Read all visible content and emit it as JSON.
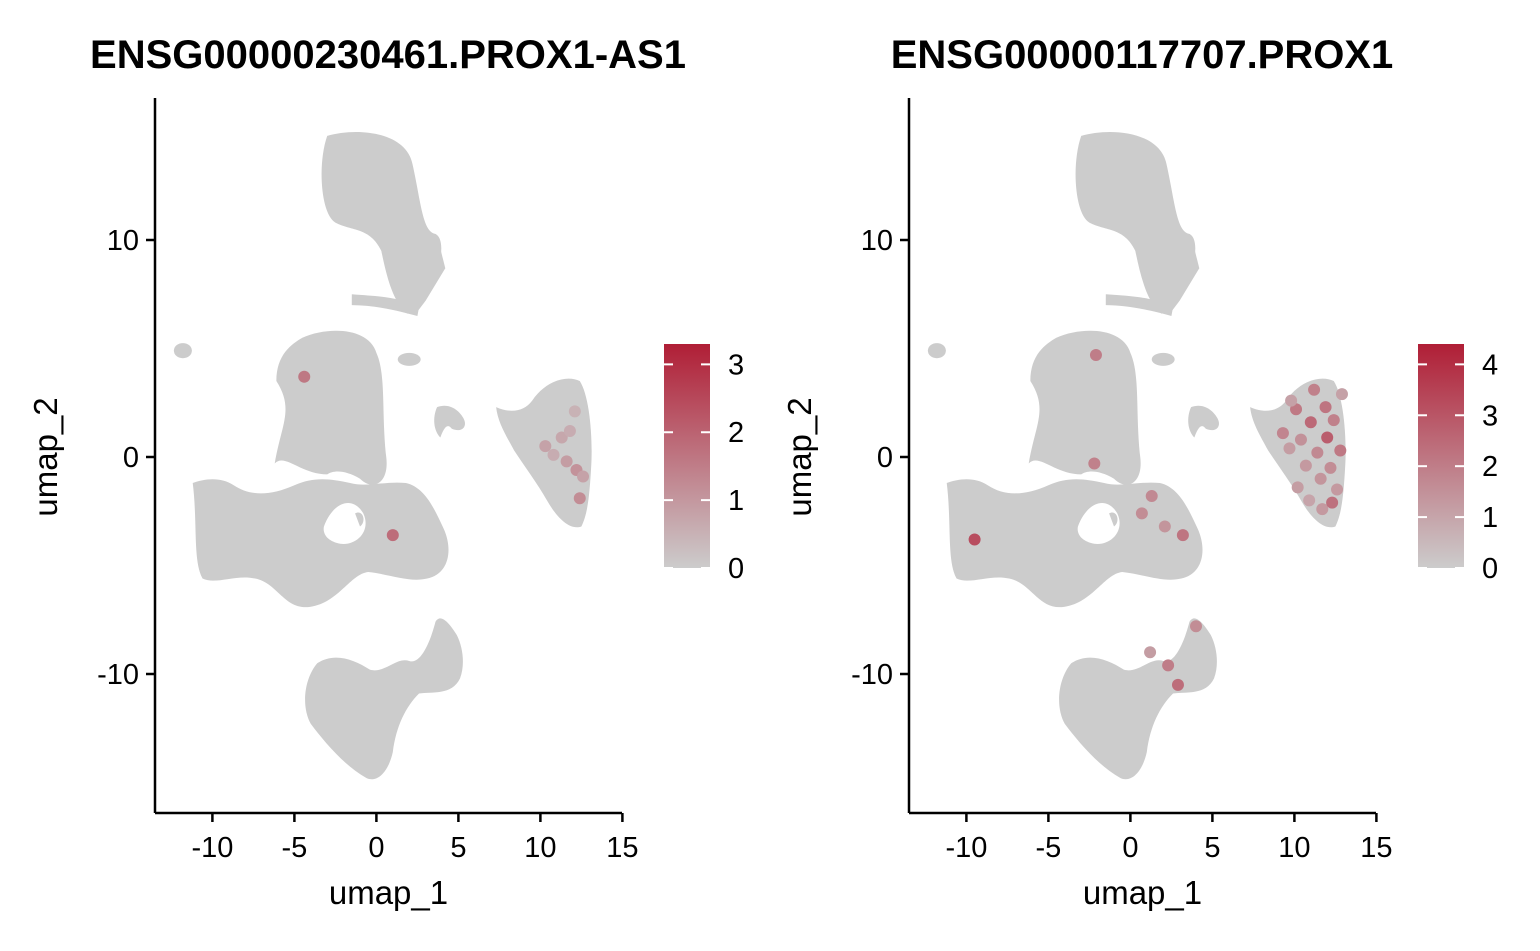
{
  "chart_data": [
    {
      "type": "scatter",
      "title": "ENSG00000230461.PROX1-AS1",
      "xlabel": "umap_1",
      "ylabel": "umap_2",
      "xlim": [
        -13.5,
        15.5
      ],
      "ylim": [
        -16.5,
        16.5
      ],
      "xticks": [
        -10,
        -5,
        0,
        5,
        10,
        15
      ],
      "yticks": [
        -10,
        0,
        10
      ],
      "xtick_labels": [
        "-10",
        "-5",
        "0",
        "5",
        "10",
        "15"
      ],
      "ytick_labels": [
        "-10",
        "0",
        "10"
      ],
      "color_scale": {
        "low": "#cccccc",
        "high": "#b01e36",
        "min": 0,
        "max": 3.3,
        "ticks": [
          0,
          1,
          2,
          3
        ],
        "tick_labels": [
          "0",
          "1",
          "2",
          "3"
        ]
      },
      "grid": false,
      "legend": "right",
      "highlighted_points": [
        {
          "x": -4.4,
          "y": 3.7,
          "value": 1.6
        },
        {
          "x": 1.0,
          "y": -3.6,
          "value": 1.8
        },
        {
          "x": 10.3,
          "y": 0.5,
          "value": 0.8
        },
        {
          "x": 10.8,
          "y": 0.1,
          "value": 0.6
        },
        {
          "x": 11.3,
          "y": 0.9,
          "value": 0.7
        },
        {
          "x": 11.6,
          "y": -0.2,
          "value": 0.9
        },
        {
          "x": 11.8,
          "y": 1.2,
          "value": 0.6
        },
        {
          "x": 12.2,
          "y": -0.6,
          "value": 1.1
        },
        {
          "x": 12.4,
          "y": -1.9,
          "value": 1.2
        },
        {
          "x": 12.6,
          "y": -0.9,
          "value": 0.8
        },
        {
          "x": 12.1,
          "y": 2.1,
          "value": 0.5
        }
      ]
    },
    {
      "type": "scatter",
      "title": "ENSG00000117707.PROX1",
      "xlabel": "umap_1",
      "ylabel": "umap_2",
      "xlim": [
        -13.5,
        15.5
      ],
      "ylim": [
        -16.5,
        16.5
      ],
      "xticks": [
        -10,
        -5,
        0,
        5,
        10,
        15
      ],
      "yticks": [
        -10,
        0,
        10
      ],
      "xtick_labels": [
        "-10",
        "-5",
        "0",
        "5",
        "10",
        "15"
      ],
      "ytick_labels": [
        "-10",
        "0",
        "10"
      ],
      "color_scale": {
        "low": "#cccccc",
        "high": "#b01e36",
        "min": 0,
        "max": 4.4,
        "ticks": [
          0,
          1,
          2,
          3,
          4
        ],
        "tick_labels": [
          "0",
          "1",
          "2",
          "3",
          "4"
        ]
      },
      "grid": false,
      "legend": "right",
      "highlighted_points": [
        {
          "x": -9.5,
          "y": -3.8,
          "value": 3.2
        },
        {
          "x": -2.2,
          "y": -0.3,
          "value": 1.9
        },
        {
          "x": 0.7,
          "y": -2.6,
          "value": 1.6
        },
        {
          "x": 1.3,
          "y": -1.8,
          "value": 1.7
        },
        {
          "x": 2.1,
          "y": -3.2,
          "value": 1.4
        },
        {
          "x": 3.2,
          "y": -3.6,
          "value": 2.2
        },
        {
          "x": 2.3,
          "y": -9.6,
          "value": 2.0
        },
        {
          "x": 2.9,
          "y": -10.5,
          "value": 2.4
        },
        {
          "x": 1.2,
          "y": -9.0,
          "value": 1.2
        },
        {
          "x": 4.0,
          "y": -7.8,
          "value": 1.6
        },
        {
          "x": -2.1,
          "y": 4.7,
          "value": 2.0
        },
        {
          "x": 9.3,
          "y": 1.1,
          "value": 1.8
        },
        {
          "x": 9.7,
          "y": 0.4,
          "value": 1.2
        },
        {
          "x": 10.1,
          "y": 2.2,
          "value": 2.1
        },
        {
          "x": 10.4,
          "y": 0.8,
          "value": 1.5
        },
        {
          "x": 10.7,
          "y": -0.4,
          "value": 1.3
        },
        {
          "x": 11.0,
          "y": 1.6,
          "value": 2.5
        },
        {
          "x": 11.2,
          "y": 3.1,
          "value": 1.9
        },
        {
          "x": 11.4,
          "y": 0.2,
          "value": 1.7
        },
        {
          "x": 11.6,
          "y": -1.0,
          "value": 1.4
        },
        {
          "x": 11.9,
          "y": 2.3,
          "value": 2.2
        },
        {
          "x": 12.0,
          "y": 0.9,
          "value": 2.8
        },
        {
          "x": 12.2,
          "y": -0.5,
          "value": 1.6
        },
        {
          "x": 12.4,
          "y": 1.7,
          "value": 1.9
        },
        {
          "x": 12.6,
          "y": -1.5,
          "value": 1.3
        },
        {
          "x": 12.8,
          "y": 0.3,
          "value": 2.1
        },
        {
          "x": 12.9,
          "y": 2.9,
          "value": 1.1
        },
        {
          "x": 10.2,
          "y": -1.4,
          "value": 1.2
        },
        {
          "x": 10.9,
          "y": -2.0,
          "value": 1.0
        },
        {
          "x": 11.7,
          "y": -2.4,
          "value": 1.3
        },
        {
          "x": 12.3,
          "y": -2.1,
          "value": 2.3
        },
        {
          "x": 9.8,
          "y": 2.6,
          "value": 1.1
        }
      ]
    }
  ]
}
